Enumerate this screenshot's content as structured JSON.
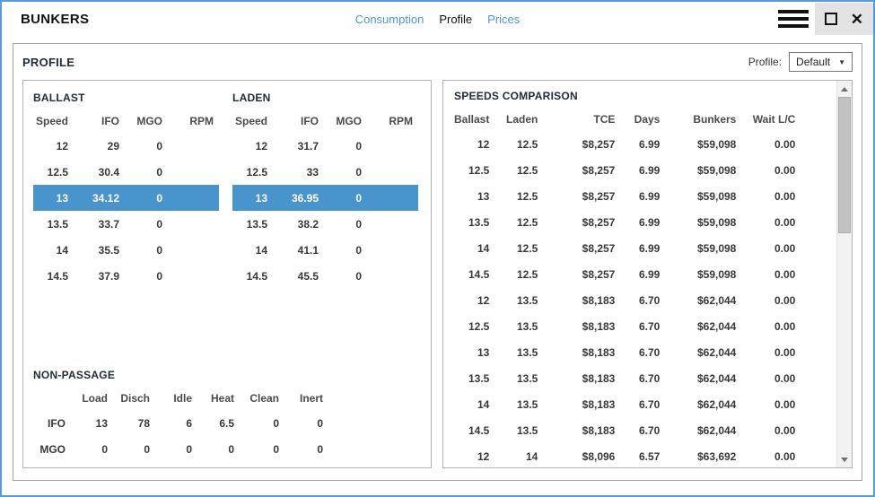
{
  "window": {
    "title": "BUNKERS",
    "tabs": [
      {
        "label": "Consumption",
        "active": false
      },
      {
        "label": "Profile",
        "active": true
      },
      {
        "label": "Prices",
        "active": false
      }
    ],
    "icons": {
      "menu": "hamburger-menu",
      "maximize": "square-outline",
      "close_glyph": "✕",
      "dropdown_caret": "▼",
      "scroll_up": "triangle-up",
      "scroll_down": "triangle-down"
    }
  },
  "profile_section": {
    "heading": "PROFILE",
    "selector_label": "Profile:",
    "selector_value": "Default"
  },
  "ballast": {
    "title": "BALLAST",
    "headers": [
      "Speed",
      "IFO",
      "MGO",
      "RPM"
    ],
    "selected_index": 2,
    "rows": [
      [
        "12",
        "29",
        "0",
        ""
      ],
      [
        "12.5",
        "30.4",
        "0",
        ""
      ],
      [
        "13",
        "34.12",
        "0",
        ""
      ],
      [
        "13.5",
        "33.7",
        "0",
        ""
      ],
      [
        "14",
        "35.5",
        "0",
        ""
      ],
      [
        "14.5",
        "37.9",
        "0",
        ""
      ]
    ]
  },
  "laden": {
    "title": "LADEN",
    "headers": [
      "Speed",
      "IFO",
      "MGO",
      "RPM"
    ],
    "selected_index": 2,
    "rows": [
      [
        "12",
        "31.7",
        "0",
        ""
      ],
      [
        "12.5",
        "33",
        "0",
        ""
      ],
      [
        "13",
        "36.95",
        "0",
        ""
      ],
      [
        "13.5",
        "38.2",
        "0",
        ""
      ],
      [
        "14",
        "41.1",
        "0",
        ""
      ],
      [
        "14.5",
        "45.5",
        "0",
        ""
      ]
    ]
  },
  "non_passage": {
    "title": "NON-PASSAGE",
    "headers": [
      "",
      "Load",
      "Disch",
      "Idle",
      "Heat",
      "Clean",
      "Inert"
    ],
    "rows": [
      [
        "IFO",
        "13",
        "78",
        "6",
        "6.5",
        "0",
        "0"
      ],
      [
        "MGO",
        "0",
        "0",
        "0",
        "0",
        "0",
        "0"
      ]
    ]
  },
  "speeds_comparison": {
    "title": "SPEEDS COMPARISON",
    "headers": [
      "Ballast",
      "Laden",
      "TCE",
      "Days",
      "Bunkers",
      "Wait L/C"
    ],
    "rows": [
      [
        "12",
        "12.5",
        "$8,257",
        "6.99",
        "$59,098",
        "0.00"
      ],
      [
        "12.5",
        "12.5",
        "$8,257",
        "6.99",
        "$59,098",
        "0.00"
      ],
      [
        "13",
        "12.5",
        "$8,257",
        "6.99",
        "$59,098",
        "0.00"
      ],
      [
        "13.5",
        "12.5",
        "$8,257",
        "6.99",
        "$59,098",
        "0.00"
      ],
      [
        "14",
        "12.5",
        "$8,257",
        "6.99",
        "$59,098",
        "0.00"
      ],
      [
        "14.5",
        "12.5",
        "$8,257",
        "6.99",
        "$59,098",
        "0.00"
      ],
      [
        "12",
        "13.5",
        "$8,183",
        "6.70",
        "$62,044",
        "0.00"
      ],
      [
        "12.5",
        "13.5",
        "$8,183",
        "6.70",
        "$62,044",
        "0.00"
      ],
      [
        "13",
        "13.5",
        "$8,183",
        "6.70",
        "$62,044",
        "0.00"
      ],
      [
        "13.5",
        "13.5",
        "$8,183",
        "6.70",
        "$62,044",
        "0.00"
      ],
      [
        "14",
        "13.5",
        "$8,183",
        "6.70",
        "$62,044",
        "0.00"
      ],
      [
        "14.5",
        "13.5",
        "$8,183",
        "6.70",
        "$62,044",
        "0.00"
      ],
      [
        "12",
        "14",
        "$8,096",
        "6.57",
        "$63,692",
        "0.00"
      ]
    ]
  },
  "colors": {
    "selected_row_bg": "#4a94ce",
    "tab_link_blue": "#4f94d4",
    "window_border_blue": "#5b9bd5"
  }
}
